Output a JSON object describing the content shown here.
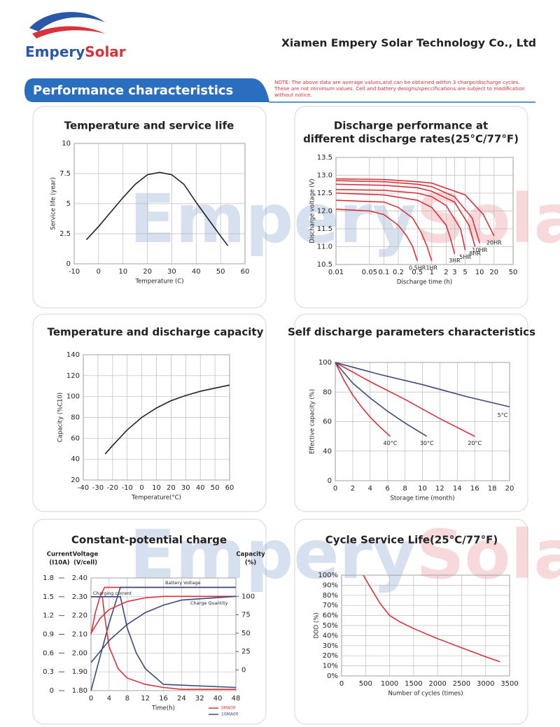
{
  "header": {
    "logo_left": "Empery",
    "logo_right": "Solar",
    "company": "Xiamen Empery Solar Technology Co., Ltd",
    "section": "Performance characteristics",
    "note": [
      "NOTE: The above data are average values,and can be obtained within 3 charge/discharge cycles.",
      "These are not minimum values. Cell and battery designs/speccifications are subject to modification",
      "without notice."
    ],
    "watermark_left": "Empery",
    "watermark_right": "Solar"
  },
  "chart_data": [
    {
      "type": "line",
      "title": "Temperature and service life",
      "x_label": "Temperature (C)",
      "y_label": "Service life (year)",
      "x": [
        -5,
        0,
        5,
        10,
        15,
        20,
        25,
        30,
        35,
        40,
        45,
        50,
        53
      ],
      "values": [
        2,
        3.1,
        4.3,
        5.5,
        6.6,
        7.4,
        7.6,
        7.4,
        6.6,
        5.1,
        3.7,
        2.3,
        1.5
      ],
      "color": "#222222",
      "xlim": [
        -10,
        60
      ],
      "xticks": [
        -10,
        0,
        10,
        20,
        30,
        40,
        50,
        60
      ],
      "ylim": [
        0,
        10
      ],
      "yticks": [
        0,
        2.5,
        5,
        7.5,
        10
      ],
      "grid": true
    },
    {
      "type": "line",
      "title": [
        "Discharge performance at",
        "different discharge rates(25°C/77°F)"
      ],
      "x_label": "Discharge time (h)",
      "y_label": "Discharge voltage (V)",
      "xscale": "log",
      "series": [
        {
          "name": "0.5HR",
          "color": "#d8333b",
          "x": [
            0.01,
            0.05,
            0.1,
            0.2,
            0.3,
            0.4,
            0.5
          ],
          "values": [
            12.05,
            12.0,
            11.9,
            11.6,
            11.3,
            11.0,
            10.6
          ]
        },
        {
          "name": "1HR",
          "color": "#d8333b",
          "x": [
            0.01,
            0.1,
            0.2,
            0.4,
            0.6,
            0.8,
            1
          ],
          "values": [
            12.3,
            12.25,
            12.1,
            11.8,
            11.4,
            11.0,
            10.6
          ]
        },
        {
          "name": "3HR",
          "color": "#d8333b",
          "x": [
            0.01,
            0.1,
            0.5,
            1,
            2,
            2.5,
            3
          ],
          "values": [
            12.5,
            12.45,
            12.3,
            12.1,
            11.6,
            11.2,
            10.8
          ]
        },
        {
          "name": "5HR",
          "color": "#d8333b",
          "x": [
            0.01,
            0.1,
            0.5,
            1,
            2,
            4,
            5
          ],
          "values": [
            12.6,
            12.58,
            12.5,
            12.4,
            12.15,
            11.5,
            10.9
          ]
        },
        {
          "name": "8HR",
          "color": "#d8333b",
          "x": [
            0.01,
            0.1,
            0.5,
            1,
            3,
            6,
            8
          ],
          "values": [
            12.75,
            12.72,
            12.65,
            12.55,
            12.25,
            11.6,
            11.0
          ]
        },
        {
          "name": "10HR",
          "color": "#d8333b",
          "x": [
            0.01,
            0.1,
            0.5,
            1,
            3,
            7,
            10
          ],
          "values": [
            12.85,
            12.82,
            12.75,
            12.68,
            12.4,
            11.8,
            11.1
          ]
        },
        {
          "name": "20HR",
          "color": "#d8333b",
          "x": [
            0.01,
            0.1,
            0.5,
            1,
            5,
            12,
            20
          ],
          "values": [
            12.9,
            12.88,
            12.82,
            12.78,
            12.45,
            11.9,
            11.3
          ]
        }
      ],
      "xlim": [
        0.01,
        50
      ],
      "xticks": [
        0.01,
        0.05,
        0.1,
        0.2,
        0.5,
        1,
        2,
        3,
        5,
        10,
        20,
        50
      ],
      "ylim": [
        10.5,
        13.5
      ],
      "yticks": [
        10.5,
        {
          "value": 11,
          "label": "11.0"
        },
        11.5,
        {
          "value": 12,
          "label": "12.0"
        },
        12.5,
        {
          "value": 13,
          "label": "13.0"
        },
        13.5
      ],
      "grid": true
    },
    {
      "type": "line",
      "title": "Temperature and discharge capacity",
      "x_label": "Temperature(°C)",
      "y_label": "Capacity (%C10)",
      "x": [
        -25,
        -20,
        -10,
        0,
        10,
        20,
        30,
        40,
        50,
        60
      ],
      "values": [
        45,
        53,
        68,
        80,
        89,
        96,
        101,
        105,
        108,
        111
      ],
      "color": "#222222",
      "xlim": [
        -40,
        60
      ],
      "xticks": [
        -40,
        -30,
        -20,
        -10,
        0,
        10,
        20,
        30,
        40,
        50,
        60
      ],
      "ylim": [
        20,
        140
      ],
      "yticks": [
        20,
        40,
        60,
        80,
        100,
        120,
        140
      ],
      "grid": true
    },
    {
      "type": "line",
      "title": "Self discharge parameters characteristics",
      "x_label": "Storage time (month)",
      "y_label": "Effective capacity (%)",
      "yscale": "piecewise",
      "series": [
        {
          "name": "40°C",
          "color": "#d8333b",
          "x": [
            0,
            1,
            2,
            3,
            4,
            5,
            6.3
          ],
          "values": [
            100,
            88,
            78,
            70,
            63,
            57,
            50
          ]
        },
        {
          "name": "30°C",
          "color": "#3a4a7c",
          "x": [
            0,
            2,
            4,
            6,
            8,
            10.5
          ],
          "values": [
            100,
            86,
            76,
            67,
            59,
            50
          ]
        },
        {
          "name": "20°C",
          "color": "#d8333b",
          "x": [
            0,
            4,
            8,
            12,
            16
          ],
          "values": [
            100,
            87,
            75,
            62,
            50
          ]
        },
        {
          "name": "5°C",
          "color": "#3a4a7c",
          "x": [
            0,
            5,
            10,
            15,
            20
          ],
          "values": [
            100,
            92,
            85,
            77,
            70
          ]
        }
      ],
      "xlim": [
        0,
        20
      ],
      "xticks": [
        0,
        2,
        4,
        6,
        8,
        10,
        12,
        14,
        16,
        18,
        20
      ],
      "ylim": [
        0,
        100
      ],
      "yticks": [
        0,
        40,
        60,
        80,
        100
      ],
      "grid": true
    },
    {
      "type": "line",
      "title": "Constant-potential charge",
      "x_label": "Time(h)",
      "xscale": "piecewise",
      "y_label": [
        "Voltage",
        "(V/cell)"
      ],
      "y2_label": [
        "Current",
        "(I10A)"
      ],
      "y3_label": [
        "Capacity",
        "(%)"
      ],
      "annotations": [
        "Battery Voltage",
        "Charging current",
        "Charge Quantity"
      ],
      "legend": [
        {
          "name": "SMA00",
          "color": "#d8333b"
        },
        {
          "name": "10MA00",
          "color": "#3a4a7c"
        }
      ],
      "series": [
        {
          "color": "#d8333b",
          "axis": "y",
          "x": [
            0,
            1,
            2,
            3,
            4,
            8,
            16,
            24,
            48
          ],
          "values": [
            2.1,
            2.22,
            2.3,
            2.35,
            2.35,
            2.35,
            2.35,
            2.35,
            2.35
          ]
        },
        {
          "color": "#3a4a7c",
          "axis": "y",
          "x": [
            0,
            2,
            4,
            6.5,
            8,
            16,
            48
          ],
          "values": [
            1.8,
            1.98,
            2.16,
            2.35,
            2.35,
            2.35,
            2.35
          ]
        },
        {
          "color": "#d8333b",
          "axis": "y2",
          "x": [
            0,
            2.5,
            3,
            4,
            6,
            8,
            12,
            16,
            24,
            48
          ],
          "values": [
            1.5,
            1.5,
            1.2,
            0.7,
            0.35,
            0.2,
            0.1,
            0.05,
            0.02,
            0.02
          ]
        },
        {
          "color": "#3a4a7c",
          "axis": "y2",
          "x": [
            0,
            6,
            6.5,
            8,
            10,
            12,
            16,
            48
          ],
          "values": [
            1.5,
            1.5,
            1.5,
            1.0,
            0.6,
            0.35,
            0.1,
            0.05
          ]
        },
        {
          "color": "#d8333b",
          "axis": "y3",
          "x": [
            0,
            2,
            4,
            8,
            12,
            16,
            24,
            48
          ],
          "values": [
            50,
            70,
            82,
            93,
            98,
            100,
            100,
            100
          ]
        },
        {
          "color": "#3a4a7c",
          "axis": "y3",
          "x": [
            0,
            4,
            8,
            12,
            16,
            24,
            48
          ],
          "values": [
            10,
            40,
            62,
            78,
            88,
            95,
            100
          ]
        }
      ],
      "xlim": [
        0,
        48
      ],
      "xticks": [
        0,
        4,
        8,
        12,
        16,
        24,
        32,
        40,
        48
      ],
      "ylim": [
        1.8,
        2.4
      ],
      "yticks": [
        {
          "value": 1.8,
          "label": "1.80"
        },
        {
          "value": 1.9,
          "label": "1.90"
        },
        {
          "value": 2.0,
          "label": "2.00"
        },
        {
          "value": 2.1,
          "label": "2.10"
        },
        {
          "value": 2.2,
          "label": "2.20"
        },
        {
          "value": 2.3,
          "label": "2.30"
        },
        {
          "value": 2.4,
          "label": "2.40"
        }
      ],
      "y2lim": [
        0,
        1.8
      ],
      "y2ticks": [
        0,
        0.3,
        0.6,
        0.9,
        1.2,
        1.5,
        1.8
      ],
      "y3lim": [
        -28,
        125
      ],
      "y3ticks": [
        0,
        25,
        50,
        75,
        100
      ],
      "grid": true
    },
    {
      "type": "line",
      "title": "Cycle Service Life(25°C/77°F)",
      "x_label": "Number of cycles (times)",
      "y_label": "DOD (%)",
      "x": [
        450,
        600,
        800,
        1000,
        1200,
        1500,
        2000,
        2500,
        3000,
        3300
      ],
      "values": [
        100,
        88,
        72,
        60,
        54,
        47,
        37,
        28,
        19,
        14
      ],
      "color": "#d8333b",
      "xlim": [
        0,
        3500
      ],
      "xticks": [
        0,
        500,
        1000,
        1500,
        2000,
        2500,
        3000,
        3500
      ],
      "ylim": [
        0,
        100
      ],
      "yticks": [
        {
          "value": 0,
          "label": "0%"
        },
        {
          "value": 10,
          "label": "10%"
        },
        {
          "value": 20,
          "label": "20%"
        },
        {
          "value": 30,
          "label": "30%"
        },
        {
          "value": 40,
          "label": "40%"
        },
        {
          "value": 50,
          "label": "50%"
        },
        {
          "value": 60,
          "label": "60%"
        },
        {
          "value": 70,
          "label": "70%"
        },
        {
          "value": 80,
          "label": "80%"
        },
        {
          "value": 90,
          "label": "90%"
        },
        {
          "value": 100,
          "label": "100%"
        }
      ],
      "grid": true
    }
  ]
}
